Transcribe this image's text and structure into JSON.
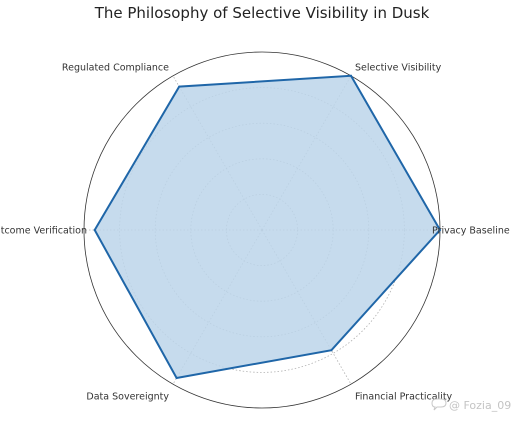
{
  "chart_data": {
    "type": "radar",
    "title": "The Philosophy of Selective Visibility in Dusk",
    "categories": [
      "Privacy Baseline",
      "Selective Visibility",
      "Regulated Compliance",
      "Outcome Verification",
      "Data Sovereignty",
      "Financial Practicality"
    ],
    "values": [
      10,
      10,
      9.3,
      9.4,
      9.6,
      7.8
    ],
    "rlim": [
      0,
      10
    ],
    "grid": true,
    "grid_rings": 5,
    "colors": {
      "fill": "#bcd5ea",
      "line": "#1f66a8"
    }
  },
  "watermark": {
    "text": "@ Fozia_09",
    "icon": "chat-bubble-icon"
  }
}
